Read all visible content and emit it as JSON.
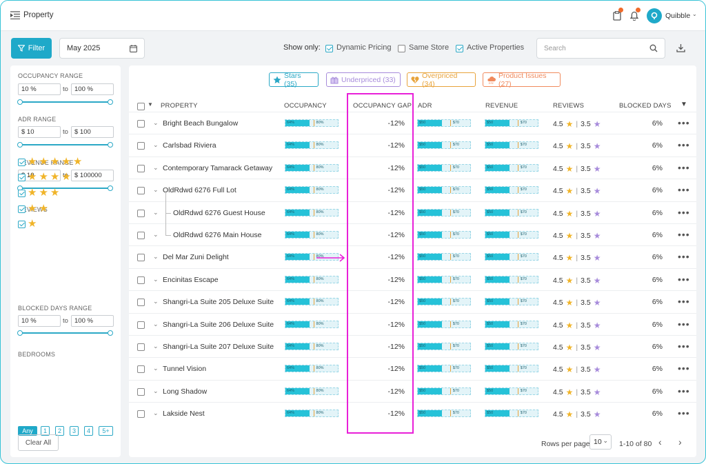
{
  "header": {
    "title": "Property",
    "user_name": "Quibble",
    "badge_a": "1",
    "badge_b": "1"
  },
  "toolbar": {
    "filter_label": "Filter",
    "date": "May 2025",
    "show_only_label": "Show only:",
    "options": [
      {
        "label": "Dynamic Pricing",
        "checked": true
      },
      {
        "label": "Same Store",
        "checked": false
      },
      {
        "label": "Active Properties",
        "checked": true
      }
    ],
    "search_placeholder": "Search"
  },
  "sidebar": {
    "occupancy": {
      "title": "OCCUPANCY RANGE",
      "from": "10 %",
      "to_label": "to",
      "to": "100 %"
    },
    "adr": {
      "title": "ADR RANGE",
      "from": "$ 10",
      "to_label": "to",
      "to": "$ 100"
    },
    "revenue": {
      "title": "REVENUE RANGE",
      "from": "$ 10",
      "to_label": "to",
      "to": "$ 100000"
    },
    "reviews": {
      "title": "REVIEWS",
      "star_counts": [
        5,
        4,
        3,
        2,
        1
      ]
    },
    "blocked": {
      "title": "BLOCKED DAYS RANGE",
      "from": "10 %",
      "to_label": "to",
      "to": "100 %"
    },
    "bedrooms": {
      "title": "BEDROOMS",
      "options": [
        "Any",
        "1",
        "2",
        "3",
        "4",
        "5+"
      ],
      "selected": "Any"
    },
    "clear_label": "Clear All"
  },
  "chips": [
    {
      "label": "Stars (35)",
      "icon": "star-icon",
      "color": "#2aa8c6"
    },
    {
      "label": "Underpriced (33)",
      "icon": "gift-icon",
      "color": "#a78bdb"
    },
    {
      "label": "Overpriced (34)",
      "icon": "broken-heart-icon",
      "color": "#e8a33a"
    },
    {
      "label": "Product Issues (27)",
      "icon": "cloud-icon",
      "color": "#f08a5d"
    }
  ],
  "table": {
    "headers": {
      "property": "PROPERTY",
      "occupancy": "OCCUPANCY",
      "gap": "OCCUPANCY GAP",
      "adr": "ADR",
      "revenue": "REVENUE",
      "reviews": "REVIEWS",
      "blocked": "BLOCKED DAYS"
    },
    "rows": [
      {
        "name": "Bright Beach Bungalow",
        "child": false,
        "occ_a": "64%",
        "occ_b": "80%",
        "occ_fill": 0.45,
        "occ_mark": 0.52,
        "gap": "-12%",
        "adr_a": "$50",
        "adr_b": "$70",
        "rev_a": "$50",
        "rev_b": "$70",
        "r1": "4.5",
        "r2": "3.5",
        "blocked": "6%"
      },
      {
        "name": "Carlsbad Riviera",
        "child": false,
        "occ_a": "64%",
        "occ_b": "80%",
        "occ_fill": 0.45,
        "occ_mark": 0.52,
        "gap": "-12%",
        "adr_a": "$50",
        "adr_b": "$70",
        "rev_a": "$50",
        "rev_b": "$70",
        "r1": "4.5",
        "r2": "3.5",
        "blocked": "6%"
      },
      {
        "name": "Contemporary Tamarack Getaway",
        "child": false,
        "occ_a": "64%",
        "occ_b": "80%",
        "occ_fill": 0.45,
        "occ_mark": 0.52,
        "gap": "-12%",
        "adr_a": "$50",
        "adr_b": "$70",
        "rev_a": "$50",
        "rev_b": "$70",
        "r1": "4.5",
        "r2": "3.5",
        "blocked": "6%"
      },
      {
        "name": "OldRdwd 6276 Full Lot",
        "child": false,
        "occ_a": "64%",
        "occ_b": "80%",
        "occ_fill": 0.45,
        "occ_mark": 0.52,
        "gap": "-12%",
        "adr_a": "$50",
        "adr_b": "$70",
        "rev_a": "$50",
        "rev_b": "$70",
        "r1": "4.5",
        "r2": "3.5",
        "blocked": "6%"
      },
      {
        "name": "OldRdwd 6276 Guest House",
        "child": true,
        "occ_a": "64%",
        "occ_b": "80%",
        "occ_fill": 0.45,
        "occ_mark": 0.52,
        "gap": "-12%",
        "adr_a": "$50",
        "adr_b": "$70",
        "rev_a": "$50",
        "rev_b": "$70",
        "r1": "4.5",
        "r2": "3.5",
        "blocked": "6%"
      },
      {
        "name": "OldRdwd 6276 Main House",
        "child": true,
        "occ_a": "64%",
        "occ_b": "80%",
        "occ_fill": 0.45,
        "occ_mark": 0.52,
        "gap": "-12%",
        "adr_a": "$50",
        "adr_b": "$70",
        "rev_a": "$50",
        "rev_b": "$70",
        "r1": "4.5",
        "r2": "3.5",
        "blocked": "6%"
      },
      {
        "name": "Del Mar Zuni Delight",
        "child": false,
        "occ_a": "64%",
        "occ_b": "80%",
        "occ_fill": 0.45,
        "occ_mark": 0.52,
        "gap": "-12%",
        "adr_a": "$50",
        "adr_b": "$70",
        "rev_a": "$50",
        "rev_b": "$70",
        "r1": "4.5",
        "r2": "3.5",
        "blocked": "6%"
      },
      {
        "name": "Encinitas Escape",
        "child": false,
        "occ_a": "64%",
        "occ_b": "80%",
        "occ_fill": 0.45,
        "occ_mark": 0.52,
        "gap": "-12%",
        "adr_a": "$50",
        "adr_b": "$70",
        "rev_a": "$50",
        "rev_b": "$70",
        "r1": "4.5",
        "r2": "3.5",
        "blocked": "6%"
      },
      {
        "name": "Shangri-La Suite  205 Deluxe Suite",
        "child": false,
        "occ_a": "64%",
        "occ_b": "80%",
        "occ_fill": 0.45,
        "occ_mark": 0.52,
        "gap": "-12%",
        "adr_a": "$50",
        "adr_b": "$70",
        "rev_a": "$50",
        "rev_b": "$70",
        "r1": "4.5",
        "r2": "3.5",
        "blocked": "6%"
      },
      {
        "name": "Shangri-La Suite  206 Deluxe Suite",
        "child": false,
        "occ_a": "64%",
        "occ_b": "80%",
        "occ_fill": 0.45,
        "occ_mark": 0.52,
        "gap": "-12%",
        "adr_a": "$50",
        "adr_b": "$70",
        "rev_a": "$50",
        "rev_b": "$70",
        "r1": "4.5",
        "r2": "3.5",
        "blocked": "6%"
      },
      {
        "name": "Shangri-La Suite  207 Deluxe Suite",
        "child": false,
        "occ_a": "64%",
        "occ_b": "80%",
        "occ_fill": 0.45,
        "occ_mark": 0.52,
        "gap": "-12%",
        "adr_a": "$50",
        "adr_b": "$70",
        "rev_a": "$50",
        "rev_b": "$70",
        "r1": "4.5",
        "r2": "3.5",
        "blocked": "6%"
      },
      {
        "name": "Tunnel Vision",
        "child": false,
        "occ_a": "64%",
        "occ_b": "80%",
        "occ_fill": 0.45,
        "occ_mark": 0.52,
        "gap": "-12%",
        "adr_a": "$50",
        "adr_b": "$70",
        "rev_a": "$50",
        "rev_b": "$70",
        "r1": "4.5",
        "r2": "3.5",
        "blocked": "6%"
      },
      {
        "name": "Long Shadow",
        "child": false,
        "occ_a": "64%",
        "occ_b": "80%",
        "occ_fill": 0.45,
        "occ_mark": 0.52,
        "gap": "-12%",
        "adr_a": "$50",
        "adr_b": "$70",
        "rev_a": "$50",
        "rev_b": "$70",
        "r1": "4.5",
        "r2": "3.5",
        "blocked": "6%"
      },
      {
        "name": "Lakside Nest",
        "child": false,
        "occ_a": "64%",
        "occ_b": "80%",
        "occ_fill": 0.45,
        "occ_mark": 0.52,
        "gap": "-12%",
        "adr_a": "$50",
        "adr_b": "$70",
        "rev_a": "$50",
        "rev_b": "$70",
        "r1": "4.5",
        "r2": "3.5",
        "blocked": "6%"
      }
    ]
  },
  "pagination": {
    "rows_label": "Rows per page",
    "rows_value": "10",
    "range": "1-10 of 80"
  },
  "colors": {
    "accent": "#1fa9c9",
    "bar": "#26c2d8",
    "highlight": "#e81fd8",
    "star": "#f0b429",
    "star2": "#a78bdb"
  }
}
